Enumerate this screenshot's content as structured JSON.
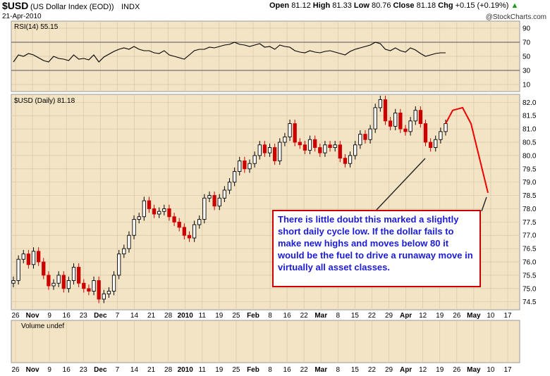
{
  "header": {
    "symbol": "$USD",
    "name": "(US Dollar Index (EOD))",
    "exchange": "INDX",
    "date": "21-Apr-2010",
    "open_label": "Open",
    "open": "81.12",
    "high_label": "High",
    "high": "81.33",
    "low_label": "Low",
    "low": "80.76",
    "close_label": "Close",
    "close": "81.18",
    "chg_label": "Chg",
    "chg": "+0.15 (+0.19%)",
    "brand": "@StockCharts.com"
  },
  "rsi_panel": {
    "label": "RSI(14) 55.15",
    "ticks": [
      "90",
      "70",
      "50",
      "30",
      "10"
    ]
  },
  "price_panel": {
    "label": "$USD (Daily) 81.18"
  },
  "volume_panel": {
    "label": "Volume undef"
  },
  "annotation": "There is little doubt this marked a slightly short daily cycle low. If the dollar fails to make new highs and moves below 80 it would be the fuel to drive a runaway move in virtually all asset classes.",
  "colors": {
    "up": "#000000",
    "down": "#cc0000",
    "projection": "#ee0000",
    "panel_bg": "#f3e4c6",
    "rsi_line": "#000000"
  },
  "chart_data": {
    "type": "line",
    "title": "$USD (Daily) 81.18",
    "xlabel": "",
    "ylabel": "",
    "ylim": [
      74.2,
      82.3
    ],
    "yticks": [
      "82.0",
      "81.5",
      "81.0",
      "80.5",
      "80.0",
      "79.5",
      "79.0",
      "78.5",
      "78.0",
      "77.5",
      "77.0",
      "76.5",
      "76.0",
      "75.5",
      "75.0",
      "74.5"
    ],
    "x_tick_labels": [
      "26",
      "Nov",
      "9",
      "16",
      "23",
      "Dec",
      "7",
      "14",
      "21",
      "28",
      "2010",
      "11",
      "19",
      "25",
      "Feb",
      "8",
      "16",
      "22",
      "Mar",
      "8",
      "15",
      "22",
      "29",
      "Apr",
      "12",
      "19",
      "26",
      "May",
      "10",
      "17"
    ],
    "x_tick_bold": [
      "Nov",
      "Dec",
      "2010",
      "Feb",
      "Mar",
      "Apr",
      "May"
    ],
    "series": [
      {
        "values": [
          75.3,
          76.1,
          76.3,
          75.9,
          76.4,
          76.0,
          75.5,
          75.1,
          75.2,
          75.5,
          75.0,
          75.3,
          75.8,
          75.2,
          75.0,
          74.9,
          75.3,
          74.6,
          74.8,
          74.9,
          75.5,
          76.3,
          76.5,
          77.0,
          77.6,
          77.7,
          78.3,
          78.0,
          77.8,
          77.9,
          78.0,
          77.7,
          77.5,
          77.3,
          77.0,
          76.9,
          77.4,
          77.6,
          78.4,
          78.5,
          78.1,
          78.4,
          78.7,
          79.0,
          79.4,
          79.8,
          79.5,
          79.7,
          80.0,
          80.4,
          80.1,
          80.3,
          79.8,
          80.5,
          80.7,
          81.2,
          80.5,
          80.4,
          80.2,
          80.6,
          80.3,
          80.1,
          80.4,
          80.3,
          80.4,
          79.9,
          79.7,
          80.0,
          80.4,
          80.8,
          80.6,
          81.0,
          81.8,
          82.1,
          81.3,
          81.1,
          81.6,
          81.0,
          80.9,
          81.3,
          81.7,
          81.2,
          80.5,
          80.3,
          80.6,
          80.9,
          81.2
        ]
      },
      {
        "name": "",
        "values": [
          81.2,
          81.7,
          81.8,
          81.2,
          78.6
        ]
      }
    ],
    "rsi_values": [
      42,
      52,
      50,
      54,
      52,
      48,
      44,
      42,
      50,
      47,
      46,
      44,
      52,
      46,
      47,
      45,
      52,
      42,
      49,
      53,
      57,
      60,
      62,
      60,
      64,
      60,
      58,
      58,
      55,
      54,
      58,
      52,
      50,
      48,
      46,
      52,
      58,
      60,
      60,
      63,
      62,
      64,
      66,
      67,
      70,
      67,
      66,
      64,
      66,
      68,
      63,
      64,
      60,
      66,
      64,
      63,
      58,
      56,
      55,
      58,
      56,
      55,
      57,
      58,
      56,
      54,
      52,
      57,
      60,
      62,
      64,
      66,
      70,
      68,
      60,
      58,
      62,
      58,
      56,
      62,
      59,
      54,
      50,
      52,
      54,
      55,
      55
    ]
  }
}
